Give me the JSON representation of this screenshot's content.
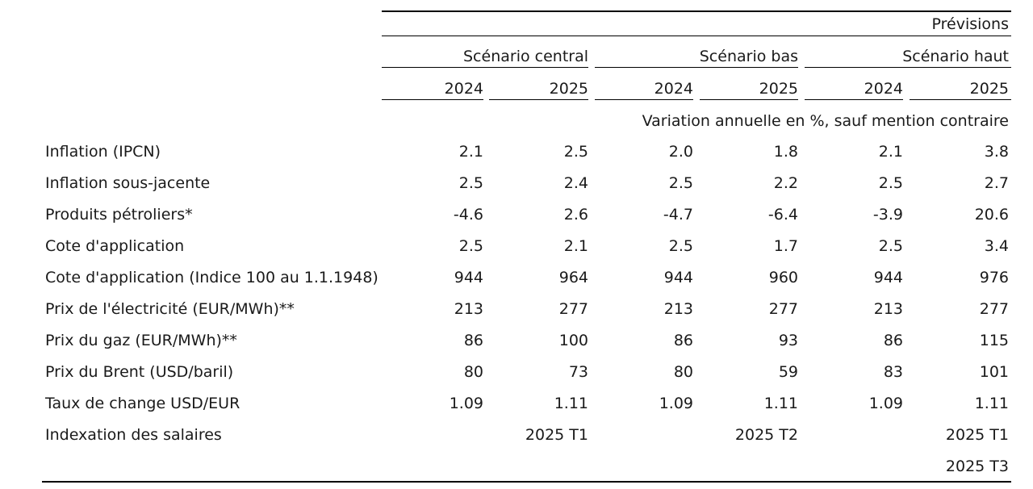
{
  "header": {
    "forecasts_label": "Prévisions",
    "scenarios": [
      {
        "name": "Scénario central",
        "years": [
          "2024",
          "2025"
        ]
      },
      {
        "name": "Scénario bas",
        "years": [
          "2024",
          "2025"
        ]
      },
      {
        "name": "Scénario haut",
        "years": [
          "2024",
          "2025"
        ]
      }
    ],
    "units_note": "Variation annuelle en %, sauf mention contraire"
  },
  "rows": [
    {
      "label": "Inflation (IPCN)",
      "values": [
        "2.1",
        "2.5",
        "2.0",
        "1.8",
        "2.1",
        "3.8"
      ]
    },
    {
      "label": "Inflation sous-jacente",
      "values": [
        "2.5",
        "2.4",
        "2.5",
        "2.2",
        "2.5",
        "2.7"
      ]
    },
    {
      "label": "Produits pétroliers*",
      "values": [
        "-4.6",
        "2.6",
        "-4.7",
        "-6.4",
        "-3.9",
        "20.6"
      ]
    },
    {
      "label": "Cote d'application",
      "values": [
        "2.5",
        "2.1",
        "2.5",
        "1.7",
        "2.5",
        "3.4"
      ]
    },
    {
      "label": "Cote d'application (Indice 100 au 1.1.1948)",
      "values": [
        "944",
        "964",
        "944",
        "960",
        "944",
        "976"
      ]
    },
    {
      "label": "Prix de l'électricité (EUR/MWh)**",
      "values": [
        "213",
        "277",
        "213",
        "277",
        "213",
        "277"
      ]
    },
    {
      "label": "Prix du gaz (EUR/MWh)**",
      "values": [
        "86",
        "100",
        "86",
        "93",
        "86",
        "115"
      ]
    },
    {
      "label": "Prix du Brent (USD/baril)",
      "values": [
        "80",
        "73",
        "80",
        "59",
        "83",
        "101"
      ]
    },
    {
      "label": "Taux de change USD/EUR",
      "values": [
        "1.09",
        "1.11",
        "1.09",
        "1.11",
        "1.09",
        "1.11"
      ]
    },
    {
      "label": "Indexation des salaires",
      "values": [
        "",
        "2025 T1",
        "",
        "2025 T2",
        "",
        "2025 T1"
      ]
    },
    {
      "label": "",
      "values": [
        "",
        "",
        "",
        "",
        "",
        "2025 T3"
      ]
    }
  ]
}
